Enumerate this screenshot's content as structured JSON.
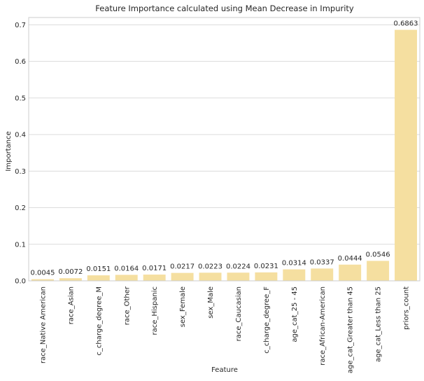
{
  "chart_data": {
    "type": "bar",
    "title": "Feature Importance calculated using Mean Decrease in Impurity",
    "xlabel": "Feature",
    "ylabel": "Importance",
    "ylim": [
      0,
      0.72
    ],
    "yticks": [
      0.0,
      0.1,
      0.2,
      0.3,
      0.4,
      0.5,
      0.6,
      0.7
    ],
    "ytick_labels": [
      "0.0",
      "0.1",
      "0.2",
      "0.3",
      "0.4",
      "0.5",
      "0.6",
      "0.7"
    ],
    "grid": "horizontal",
    "bar_color": "#f5dfa0",
    "categories": [
      "race_Native American",
      "race_Asian",
      "c_charge_degree_M",
      "race_Other",
      "race_Hispanic",
      "sex_Female",
      "sex_Male",
      "race_Caucasian",
      "c_charge_degree_F",
      "age_cat_25 - 45",
      "race_African-American",
      "age_cat_Greater than 45",
      "age_cat_Less than 25",
      "priors_count"
    ],
    "values": [
      0.0045,
      0.0072,
      0.0151,
      0.0164,
      0.0171,
      0.0217,
      0.0223,
      0.0224,
      0.0231,
      0.0314,
      0.0337,
      0.0444,
      0.0546,
      0.6863
    ],
    "value_labels": [
      "0.0045",
      "0.0072",
      "0.0151",
      "0.0164",
      "0.0171",
      "0.0217",
      "0.0223",
      "0.0224",
      "0.0231",
      "0.0314",
      "0.0337",
      "0.0444",
      "0.0546",
      "0.6863"
    ]
  }
}
